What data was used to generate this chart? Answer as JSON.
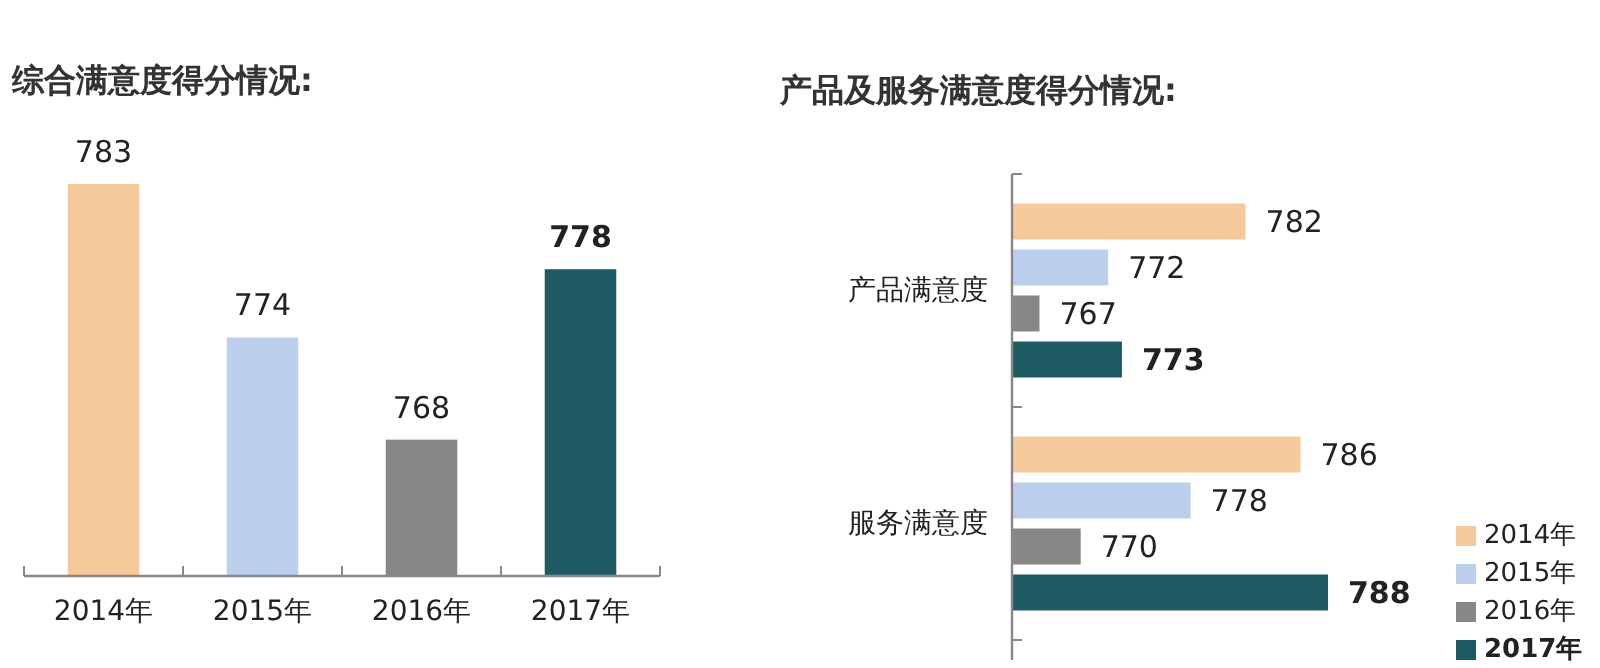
{
  "chart_data": [
    {
      "type": "bar",
      "title": "综合满意度得分情况:",
      "categories": [
        "2014年",
        "2015年",
        "2016年",
        "2017年"
      ],
      "values": [
        783,
        774,
        768,
        778
      ],
      "colors": [
        "#f5c99c",
        "#bcd0ee",
        "#878787",
        "#1e5a64"
      ],
      "ylim": [
        760,
        783
      ],
      "data_labels": true,
      "tick_labels": "x"
    },
    {
      "type": "bar",
      "orientation": "horizontal",
      "title": "产品及服务满意度得分情况:",
      "categories": [
        "产品满意度",
        "服务满意度"
      ],
      "series": [
        {
          "name": "2014年",
          "color": "#f5c99c",
          "values": [
            782,
            786
          ]
        },
        {
          "name": "2015年",
          "color": "#bcd0ee",
          "values": [
            772,
            778
          ]
        },
        {
          "name": "2016年",
          "color": "#878787",
          "values": [
            767,
            770
          ]
        },
        {
          "name": "2017年",
          "color": "#1e5a64",
          "values": [
            773,
            788
          ]
        }
      ],
      "xlim": [
        765,
        788
      ],
      "data_labels": true,
      "legend": "bottom right",
      "tick_labels": "y"
    }
  ]
}
